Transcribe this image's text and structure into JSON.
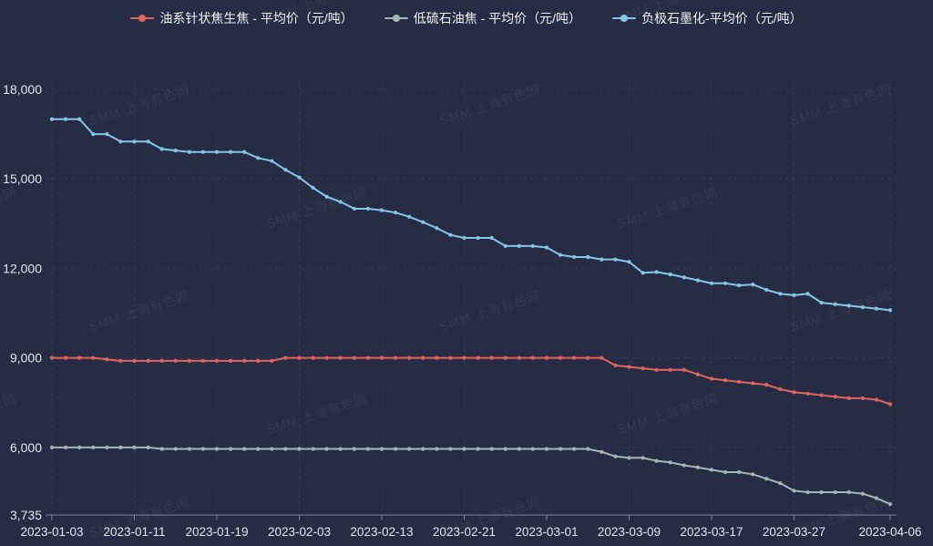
{
  "watermark": {
    "text": "SMM 上海有色网"
  },
  "chart_data": {
    "type": "line",
    "title": "",
    "xlabel": "",
    "ylabel": "",
    "legend_position": "top",
    "grid": true,
    "ylim": [
      3735,
      18000
    ],
    "y_ticks": [
      3735,
      6000,
      9000,
      12000,
      15000,
      18000
    ],
    "x_tick_labels": [
      "2023-01-03",
      "2023-01-11",
      "2023-01-19",
      "2023-02-03",
      "2023-02-13",
      "2023-02-21",
      "2023-03-01",
      "2023-03-09",
      "2023-03-17",
      "2023-03-27",
      "2023-04-06"
    ],
    "colors": {
      "grid": "#363c59",
      "axis": "#7b829b",
      "label": "#e3e6ef"
    },
    "categories": [
      "2023-01-03",
      "2023-01-04",
      "2023-01-05",
      "2023-01-06",
      "2023-01-09",
      "2023-01-10",
      "2023-01-11",
      "2023-01-12",
      "2023-01-13",
      "2023-01-16",
      "2023-01-17",
      "2023-01-18",
      "2023-01-19",
      "2023-01-20",
      "2023-01-30",
      "2023-01-31",
      "2023-02-01",
      "2023-02-02",
      "2023-02-03",
      "2023-02-06",
      "2023-02-07",
      "2023-02-08",
      "2023-02-09",
      "2023-02-10",
      "2023-02-13",
      "2023-02-14",
      "2023-02-15",
      "2023-02-16",
      "2023-02-17",
      "2023-02-20",
      "2023-02-21",
      "2023-02-22",
      "2023-02-23",
      "2023-02-24",
      "2023-02-27",
      "2023-02-28",
      "2023-03-01",
      "2023-03-02",
      "2023-03-03",
      "2023-03-06",
      "2023-03-07",
      "2023-03-08",
      "2023-03-09",
      "2023-03-10",
      "2023-03-13",
      "2023-03-14",
      "2023-03-15",
      "2023-03-16",
      "2023-03-17",
      "2023-03-20",
      "2023-03-21",
      "2023-03-22",
      "2023-03-23",
      "2023-03-24",
      "2023-03-27",
      "2023-03-28",
      "2023-03-29",
      "2023-03-30",
      "2023-03-31",
      "2023-04-03",
      "2023-04-04",
      "2023-04-06"
    ],
    "series": [
      {
        "name": "油系针状焦生焦 - 平均价（元/吨）",
        "color": "#e0665c",
        "values": [
          9000,
          9000,
          9000,
          9000,
          8950,
          8900,
          8900,
          8900,
          8900,
          8900,
          8900,
          8900,
          8900,
          8900,
          8900,
          8900,
          8900,
          9000,
          9000,
          9000,
          9000,
          9000,
          9000,
          9000,
          9000,
          9000,
          9000,
          9000,
          9000,
          9000,
          9000,
          9000,
          9000,
          9000,
          9000,
          9000,
          9000,
          9000,
          9000,
          9000,
          9000,
          8750,
          8700,
          8650,
          8600,
          8600,
          8600,
          8450,
          8300,
          8250,
          8200,
          8150,
          8100,
          7950,
          7850,
          7800,
          7750,
          7700,
          7650,
          7650,
          7600,
          7450
        ]
      },
      {
        "name": "低硫石油焦 - 平均价（元/吨）",
        "color": "#a1b8b3",
        "values": [
          6000,
          6000,
          6000,
          6000,
          6000,
          6000,
          6000,
          6000,
          5950,
          5950,
          5950,
          5950,
          5950,
          5950,
          5950,
          5950,
          5950,
          5950,
          5950,
          5950,
          5950,
          5950,
          5950,
          5950,
          5950,
          5950,
          5950,
          5950,
          5950,
          5950,
          5950,
          5950,
          5950,
          5950,
          5950,
          5950,
          5950,
          5950,
          5950,
          5950,
          5850,
          5700,
          5650,
          5650,
          5550,
          5500,
          5400,
          5330,
          5250,
          5170,
          5170,
          5100,
          4950,
          4800,
          4550,
          4500,
          4500,
          4500,
          4500,
          4450,
          4300,
          4100
        ]
      },
      {
        "name": "负极石墨化-平均价（元/吨）",
        "color": "#83c6e9",
        "values": [
          17000,
          17000,
          17000,
          16500,
          16500,
          16250,
          16250,
          16250,
          16000,
          15950,
          15900,
          15900,
          15900,
          15900,
          15900,
          15700,
          15600,
          15300,
          15050,
          14700,
          14400,
          14230,
          14000,
          14000,
          13950,
          13870,
          13730,
          13550,
          13350,
          13120,
          13020,
          13020,
          13020,
          12750,
          12750,
          12750,
          12700,
          12450,
          12380,
          12380,
          12300,
          12300,
          12220,
          11850,
          11880,
          11800,
          11700,
          11600,
          11500,
          11500,
          11430,
          11460,
          11280,
          11150,
          11100,
          11150,
          10850,
          10800,
          10750,
          10700,
          10650,
          10600
        ]
      }
    ]
  }
}
